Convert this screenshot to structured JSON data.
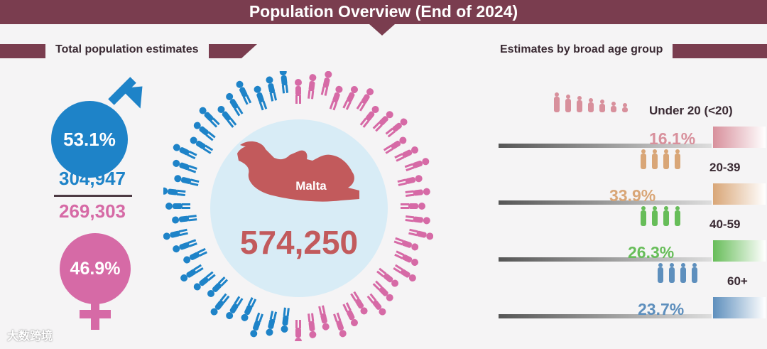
{
  "header": {
    "title": "Population Overview (End of 2024)"
  },
  "sections": {
    "left_title": "Total population estimates",
    "right_title": "Estimates by broad age group"
  },
  "gender": {
    "male_percent": "53.1%",
    "male_count": "304,947",
    "female_count": "269,303",
    "female_percent": "46.9%",
    "male_color": "#1e83c8",
    "female_color": "#d66aa6"
  },
  "country": {
    "name": "Malta",
    "total": "574,250",
    "map_color": "#c25a5c"
  },
  "age_groups": [
    {
      "label": "Under 20 (<20)",
      "percent": "16.1%",
      "value": 16.1,
      "color": "#d8909c"
    },
    {
      "label": "20-39",
      "percent": "33.9%",
      "value": 33.9,
      "color": "#d9a677"
    },
    {
      "label": "40-59",
      "percent": "26.3%",
      "value": 26.3,
      "color": "#67bd59"
    },
    {
      "label": "60+",
      "percent": "23.7%",
      "value": 23.7,
      "color": "#5e8fbd"
    }
  ],
  "watermark": "大数跨境"
}
